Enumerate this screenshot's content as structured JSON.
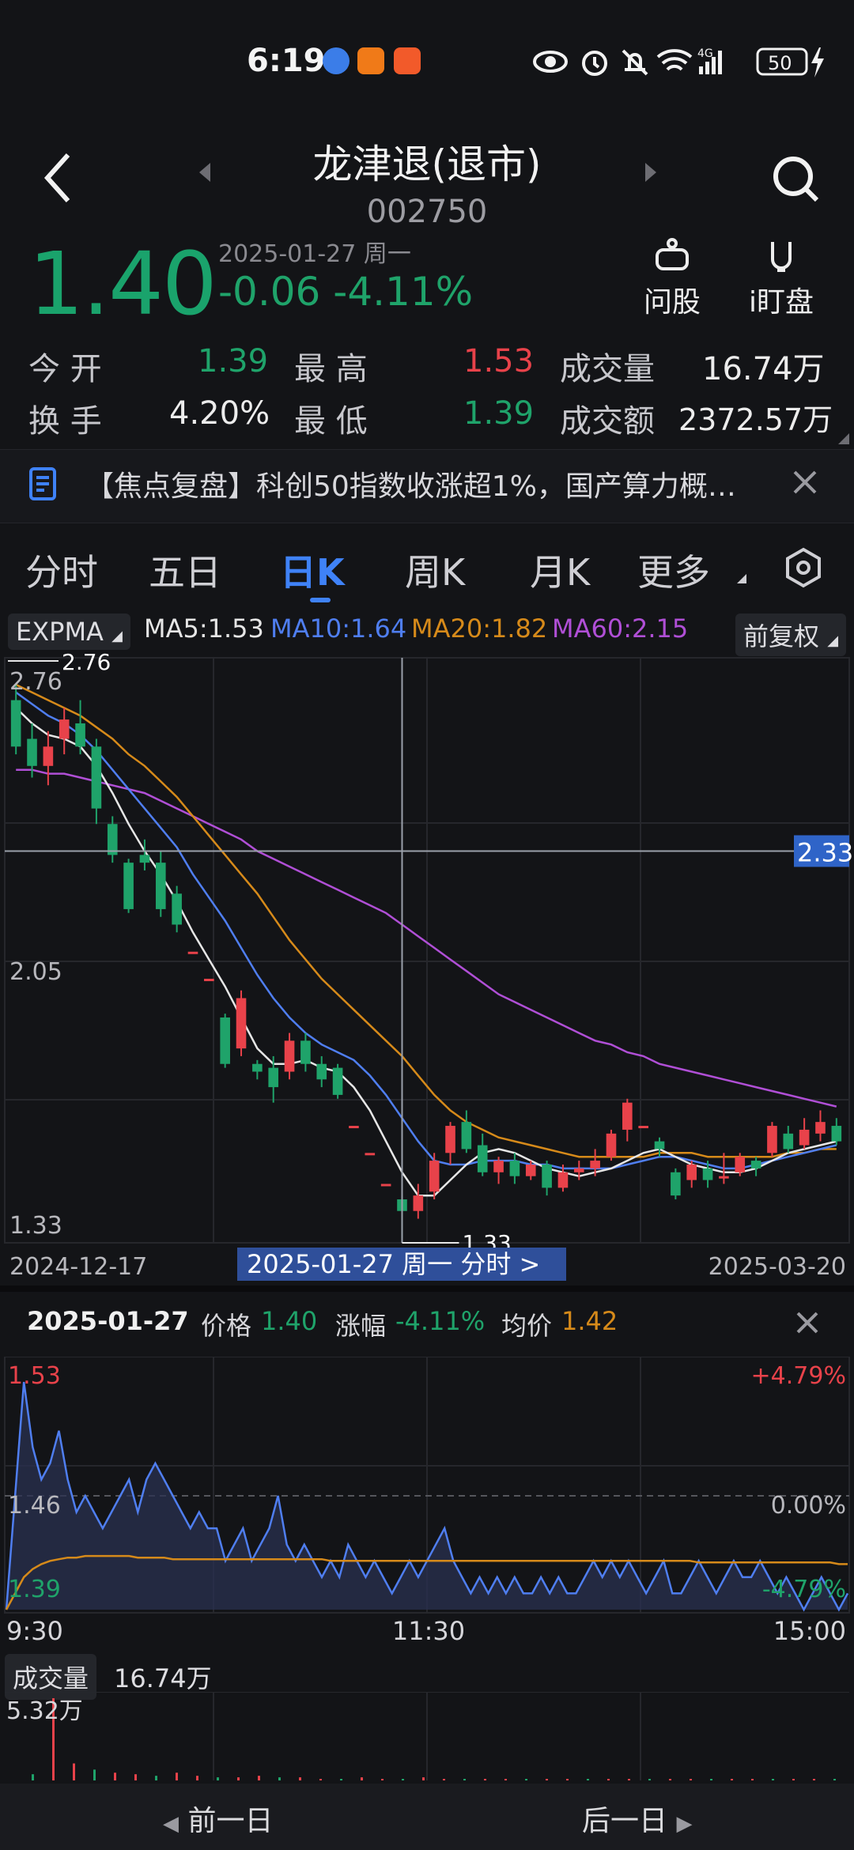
{
  "status_bar": {
    "time": "6:19",
    "battery": "50"
  },
  "header": {
    "title": "龙津退(退市)",
    "code": "002750"
  },
  "quote": {
    "price": "1.40",
    "date": "2025-01-27 周一",
    "change": "-0.06",
    "change_pct": "-4.11%",
    "ask_label": "问股",
    "watch_label": "i盯盘"
  },
  "stats": {
    "open_label": "今 开",
    "open": "1.39",
    "high_label": "最 高",
    "high": "1.53",
    "volume_label": "成交量",
    "volume": "16.74万",
    "turnover_label": "换 手",
    "turnover": "4.20%",
    "low_label": "最 低",
    "low": "1.39",
    "amount_label": "成交额",
    "amount": "2372.57万"
  },
  "news": {
    "text": "【焦点复盘】科创50指数收涨超1%，国产算力概…"
  },
  "tabs": [
    "分时",
    "五日",
    "日K",
    "周K",
    "月K",
    "更多"
  ],
  "indicators": {
    "type": "EXPMA",
    "ma5": "MA5:1.53",
    "ma10": "MA10:1.64",
    "ma20": "MA20:1.82",
    "ma60": "MA60:2.15",
    "adjust": "前复权"
  },
  "colors": {
    "up": "#e8424a",
    "down": "#1fa36a",
    "accent": "#3f82f7",
    "ma5": "#e6e6e6",
    "ma10": "#4f7ef0",
    "ma20": "#d68a1a",
    "ma60": "#b04fd6"
  },
  "chart_data": [
    {
      "type": "candlestick",
      "x_start": "2024-12-17",
      "x_end": "2025-03-20",
      "ylim": [
        1.33,
        2.76
      ],
      "y_tick_labels": [
        "2.76",
        "2.05",
        "1.33"
      ],
      "max_label": "2.76",
      "min_label": "1.33",
      "crosshair_value": "2.33",
      "crosshair_label": "2025-01-27 周一 分时 >",
      "candles": [
        {
          "o": 2.72,
          "c": 2.6,
          "h": 2.76,
          "l": 2.58
        },
        {
          "o": 2.62,
          "c": 2.55,
          "h": 2.66,
          "l": 2.52
        },
        {
          "o": 2.55,
          "c": 2.6,
          "h": 2.64,
          "l": 2.5
        },
        {
          "o": 2.62,
          "c": 2.67,
          "h": 2.7,
          "l": 2.58
        },
        {
          "o": 2.66,
          "c": 2.6,
          "h": 2.72,
          "l": 2.58
        },
        {
          "o": 2.6,
          "c": 2.44,
          "h": 2.62,
          "l": 2.4
        },
        {
          "o": 2.4,
          "c": 2.32,
          "h": 2.42,
          "l": 2.3
        },
        {
          "o": 2.3,
          "c": 2.18,
          "h": 2.31,
          "l": 2.17
        },
        {
          "o": 2.32,
          "c": 2.3,
          "h": 2.36,
          "l": 2.28
        },
        {
          "o": 2.3,
          "c": 2.18,
          "h": 2.33,
          "l": 2.16
        },
        {
          "o": 2.22,
          "c": 2.14,
          "h": 2.24,
          "l": 2.12
        },
        {
          "o": 2.07,
          "c": 2.07,
          "h": 2.07,
          "l": 2.07
        },
        {
          "o": 2.0,
          "c": 2.0,
          "h": 2.0,
          "l": 2.0
        },
        {
          "o": 1.9,
          "c": 1.78,
          "h": 1.91,
          "l": 1.77
        },
        {
          "o": 1.82,
          "c": 1.95,
          "h": 1.97,
          "l": 1.8
        },
        {
          "o": 1.78,
          "c": 1.76,
          "h": 1.79,
          "l": 1.74
        },
        {
          "o": 1.77,
          "c": 1.72,
          "h": 1.8,
          "l": 1.68
        },
        {
          "o": 1.76,
          "c": 1.84,
          "h": 1.86,
          "l": 1.74
        },
        {
          "o": 1.84,
          "c": 1.78,
          "h": 1.86,
          "l": 1.76
        },
        {
          "o": 1.78,
          "c": 1.74,
          "h": 1.8,
          "l": 1.72
        },
        {
          "o": 1.77,
          "c": 1.7,
          "h": 1.78,
          "l": 1.69
        },
        {
          "o": 1.62,
          "c": 1.62,
          "h": 1.62,
          "l": 1.62
        },
        {
          "o": 1.55,
          "c": 1.55,
          "h": 1.55,
          "l": 1.55
        },
        {
          "o": 1.47,
          "c": 1.47,
          "h": 1.47,
          "l": 1.47
        },
        {
          "o": 1.43,
          "c": 1.4,
          "h": 1.44,
          "l": 1.33
        },
        {
          "o": 1.4,
          "c": 1.44,
          "h": 1.47,
          "l": 1.38
        },
        {
          "o": 1.45,
          "c": 1.53,
          "h": 1.55,
          "l": 1.43
        },
        {
          "o": 1.55,
          "c": 1.62,
          "h": 1.63,
          "l": 1.52
        },
        {
          "o": 1.63,
          "c": 1.56,
          "h": 1.66,
          "l": 1.55
        },
        {
          "o": 1.57,
          "c": 1.5,
          "h": 1.6,
          "l": 1.49
        },
        {
          "o": 1.5,
          "c": 1.53,
          "h": 1.54,
          "l": 1.47
        },
        {
          "o": 1.53,
          "c": 1.49,
          "h": 1.55,
          "l": 1.47
        },
        {
          "o": 1.49,
          "c": 1.52,
          "h": 1.53,
          "l": 1.48
        },
        {
          "o": 1.52,
          "c": 1.46,
          "h": 1.53,
          "l": 1.44
        },
        {
          "o": 1.46,
          "c": 1.5,
          "h": 1.52,
          "l": 1.45
        },
        {
          "o": 1.5,
          "c": 1.51,
          "h": 1.53,
          "l": 1.48
        },
        {
          "o": 1.51,
          "c": 1.53,
          "h": 1.56,
          "l": 1.49
        },
        {
          "o": 1.54,
          "c": 1.6,
          "h": 1.61,
          "l": 1.53
        },
        {
          "o": 1.61,
          "c": 1.68,
          "h": 1.69,
          "l": 1.58
        },
        {
          "o": 1.62,
          "c": 1.62,
          "h": 1.62,
          "l": 1.62
        },
        {
          "o": 1.58,
          "c": 1.56,
          "h": 1.59,
          "l": 1.54
        },
        {
          "o": 1.5,
          "c": 1.44,
          "h": 1.51,
          "l": 1.43
        },
        {
          "o": 1.48,
          "c": 1.52,
          "h": 1.53,
          "l": 1.46
        },
        {
          "o": 1.51,
          "c": 1.48,
          "h": 1.53,
          "l": 1.46
        },
        {
          "o": 1.49,
          "c": 1.49,
          "h": 1.55,
          "l": 1.47
        },
        {
          "o": 1.5,
          "c": 1.54,
          "h": 1.55,
          "l": 1.49
        },
        {
          "o": 1.53,
          "c": 1.51,
          "h": 1.54,
          "l": 1.49
        },
        {
          "o": 1.55,
          "c": 1.62,
          "h": 1.63,
          "l": 1.54
        },
        {
          "o": 1.6,
          "c": 1.56,
          "h": 1.62,
          "l": 1.55
        },
        {
          "o": 1.57,
          "c": 1.61,
          "h": 1.64,
          "l": 1.56
        },
        {
          "o": 1.6,
          "c": 1.63,
          "h": 1.66,
          "l": 1.58
        },
        {
          "o": 1.62,
          "c": 1.58,
          "h": 1.64,
          "l": 1.57
        }
      ],
      "ma5": [
        2.7,
        2.66,
        2.63,
        2.62,
        2.6,
        2.55,
        2.48,
        2.4,
        2.33,
        2.27,
        2.2,
        2.12,
        2.05,
        1.98,
        1.9,
        1.82,
        1.78,
        1.78,
        1.79,
        1.77,
        1.76,
        1.72,
        1.66,
        1.58,
        1.5,
        1.44,
        1.44,
        1.48,
        1.52,
        1.55,
        1.56,
        1.55,
        1.53,
        1.51,
        1.5,
        1.49,
        1.5,
        1.51,
        1.53,
        1.55,
        1.56,
        1.54,
        1.52,
        1.51,
        1.5,
        1.5,
        1.51,
        1.53,
        1.55,
        1.56,
        1.57,
        1.58
      ],
      "ma10": [
        2.74,
        2.71,
        2.68,
        2.66,
        2.63,
        2.59,
        2.54,
        2.49,
        2.44,
        2.39,
        2.34,
        2.27,
        2.21,
        2.15,
        2.08,
        2.01,
        1.95,
        1.9,
        1.86,
        1.83,
        1.81,
        1.79,
        1.75,
        1.7,
        1.64,
        1.58,
        1.53,
        1.52,
        1.52,
        1.53,
        1.53,
        1.53,
        1.52,
        1.52,
        1.51,
        1.51,
        1.51,
        1.51,
        1.52,
        1.53,
        1.54,
        1.54,
        1.53,
        1.52,
        1.51,
        1.51,
        1.52,
        1.53,
        1.54,
        1.55,
        1.56,
        1.57
      ],
      "ma20": [
        2.76,
        2.74,
        2.72,
        2.7,
        2.68,
        2.65,
        2.62,
        2.58,
        2.55,
        2.51,
        2.47,
        2.42,
        2.37,
        2.32,
        2.27,
        2.22,
        2.16,
        2.1,
        2.05,
        2.0,
        1.96,
        1.92,
        1.88,
        1.84,
        1.8,
        1.75,
        1.7,
        1.66,
        1.63,
        1.61,
        1.59,
        1.58,
        1.57,
        1.56,
        1.55,
        1.54,
        1.54,
        1.54,
        1.54,
        1.54,
        1.55,
        1.55,
        1.55,
        1.54,
        1.54,
        1.54,
        1.54,
        1.54,
        1.55,
        1.55,
        1.56,
        1.56
      ],
      "ma60": [
        2.54,
        2.54,
        2.53,
        2.53,
        2.52,
        2.51,
        2.5,
        2.49,
        2.48,
        2.46,
        2.44,
        2.42,
        2.4,
        2.38,
        2.36,
        2.33,
        2.31,
        2.29,
        2.27,
        2.25,
        2.23,
        2.21,
        2.19,
        2.17,
        2.14,
        2.11,
        2.08,
        2.05,
        2.02,
        1.99,
        1.96,
        1.94,
        1.92,
        1.9,
        1.88,
        1.86,
        1.84,
        1.83,
        1.81,
        1.8,
        1.78,
        1.77,
        1.76,
        1.75,
        1.74,
        1.73,
        1.72,
        1.71,
        1.7,
        1.69,
        1.68,
        1.67
      ]
    },
    {
      "type": "line",
      "title": "分时",
      "x_tick_labels": [
        "9:30",
        "11:30",
        "15:00"
      ],
      "ylim": [
        1.39,
        1.53
      ],
      "y_tick_labels": [
        "1.53",
        "1.46",
        "1.39"
      ],
      "pct_labels": [
        "+4.79%",
        "0.00%",
        "-4.79%"
      ],
      "series": [
        {
          "name": "价格",
          "values": [
            1.39,
            1.46,
            1.53,
            1.49,
            1.47,
            1.48,
            1.5,
            1.47,
            1.45,
            1.46,
            1.45,
            1.44,
            1.45,
            1.46,
            1.47,
            1.45,
            1.47,
            1.48,
            1.47,
            1.46,
            1.45,
            1.44,
            1.45,
            1.44,
            1.44,
            1.42,
            1.43,
            1.44,
            1.42,
            1.43,
            1.44,
            1.46,
            1.43,
            1.42,
            1.43,
            1.42,
            1.41,
            1.42,
            1.41,
            1.43,
            1.42,
            1.41,
            1.42,
            1.41,
            1.4,
            1.41,
            1.42,
            1.41,
            1.42,
            1.43,
            1.44,
            1.42,
            1.41,
            1.4,
            1.41,
            1.4,
            1.41,
            1.4,
            1.41,
            1.4,
            1.4,
            1.41,
            1.4,
            1.41,
            1.4,
            1.4,
            1.41,
            1.42,
            1.41,
            1.42,
            1.41,
            1.42,
            1.41,
            1.4,
            1.41,
            1.42,
            1.4,
            1.4,
            1.41,
            1.42,
            1.41,
            1.4,
            1.41,
            1.42,
            1.41,
            1.41,
            1.42,
            1.41,
            1.4,
            1.41,
            1.4,
            1.39,
            1.4,
            1.41,
            1.4,
            1.39,
            1.4
          ]
        },
        {
          "name": "均价",
          "values": [
            1.39,
            1.4,
            1.41,
            1.415,
            1.418,
            1.42,
            1.421,
            1.422,
            1.422,
            1.423,
            1.423,
            1.423,
            1.423,
            1.423,
            1.423,
            1.422,
            1.422,
            1.422,
            1.422,
            1.421,
            1.421,
            1.421,
            1.421,
            1.421,
            1.421,
            1.421,
            1.421,
            1.421,
            1.421,
            1.421,
            1.421,
            1.421,
            1.421,
            1.421,
            1.421,
            1.421,
            1.421,
            1.42,
            1.42,
            1.42,
            1.42,
            1.42,
            1.42,
            1.42,
            1.42,
            1.42,
            1.42,
            1.42,
            1.42,
            1.42,
            1.42,
            1.42,
            1.42,
            1.42,
            1.42,
            1.42,
            1.42,
            1.42,
            1.42,
            1.42,
            1.42,
            1.42,
            1.42,
            1.42,
            1.42,
            1.42,
            1.42,
            1.42,
            1.42,
            1.42,
            1.42,
            1.42,
            1.42,
            1.42,
            1.42,
            1.42,
            1.42,
            1.42,
            1.42,
            1.419,
            1.419,
            1.419,
            1.419,
            1.419,
            1.419,
            1.419,
            1.419,
            1.419,
            1.419,
            1.419,
            1.419,
            1.419,
            1.419,
            1.419,
            1.419,
            1.418,
            1.418
          ]
        }
      ]
    },
    {
      "type": "bar",
      "title": "成交量",
      "max_label": "5.32万",
      "values": [
        0.4,
        5.32,
        1.1,
        0.7,
        0.5,
        0.4,
        0.3,
        0.5,
        0.3,
        0.2,
        0.2,
        0.3,
        0.2,
        0.2,
        0.1,
        0.1,
        0.2,
        0.1,
        0.1,
        0.2,
        0.1,
        0.1,
        0.1,
        0.1,
        0.1,
        0.1,
        0.1,
        0.1,
        0.1,
        0.1,
        0.1,
        0.1,
        0.1,
        0.1,
        0.1,
        0.1,
        0.1,
        0.1,
        0.1,
        0.1
      ]
    }
  ],
  "detail": {
    "date": "2025-01-27",
    "price_label": "价格",
    "price": "1.40",
    "pct_label": "涨幅",
    "pct": "-4.11%",
    "avg_label": "均价",
    "avg": "1.42"
  },
  "volume_panel": {
    "label": "成交量",
    "value": "16.74万"
  },
  "nav": {
    "prev": "前一日",
    "next": "后一日"
  }
}
